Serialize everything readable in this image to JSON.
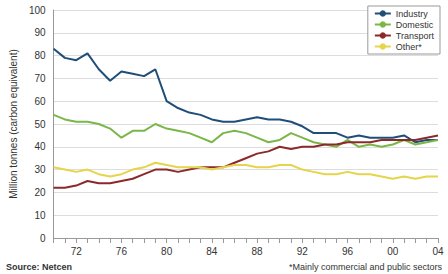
{
  "chart_data": {
    "type": "line",
    "y_label": "Million tonnes (carbon equivalent)",
    "categories": [
      null,
      null,
      "72",
      null,
      null,
      null,
      "76",
      null,
      null,
      null,
      "80",
      null,
      null,
      null,
      "84",
      null,
      null,
      null,
      "88",
      null,
      null,
      null,
      "92",
      null,
      null,
      null,
      "96",
      null,
      null,
      null,
      "00",
      null,
      null,
      null,
      "04"
    ],
    "series": [
      {
        "name": "Industry",
        "color": "#1f4e79",
        "values": [
          83,
          79,
          78,
          81,
          74,
          69,
          73,
          72,
          71,
          74,
          60,
          57,
          55,
          54,
          52,
          51,
          51,
          52,
          53,
          52,
          52,
          51,
          49,
          46,
          46,
          46,
          44,
          45,
          44,
          44,
          44,
          45,
          42,
          43,
          43
        ]
      },
      {
        "name": "Domestic",
        "color": "#7ab648",
        "values": [
          54,
          52,
          51,
          51,
          50,
          48,
          44,
          47,
          47,
          50,
          48,
          47,
          46,
          44,
          42,
          46,
          47,
          46,
          44,
          42,
          43,
          46,
          44,
          42,
          41,
          40,
          43,
          40,
          41,
          40,
          41,
          43,
          41,
          42,
          43
        ]
      },
      {
        "name": "Transport",
        "color": "#8b2a2a",
        "values": [
          22,
          22,
          23,
          25,
          24,
          24,
          25,
          26,
          28,
          30,
          30,
          29,
          30,
          31,
          31,
          31,
          33,
          35,
          37,
          38,
          40,
          39,
          40,
          40,
          41,
          41,
          42,
          42,
          42,
          43,
          43,
          43,
          43,
          44,
          45
        ]
      },
      {
        "name": "Other*",
        "color": "#e6d44a",
        "values": [
          31,
          30,
          29,
          30,
          28,
          27,
          28,
          30,
          31,
          33,
          32,
          31,
          31,
          31,
          30,
          31,
          32,
          32,
          31,
          31,
          32,
          32,
          30,
          29,
          28,
          28,
          29,
          28,
          28,
          27,
          26,
          27,
          26,
          27,
          27
        ]
      }
    ],
    "ylim": [
      0,
      100
    ],
    "yticks": [
      0,
      10,
      20,
      30,
      40,
      50,
      60,
      70,
      80,
      90,
      100
    ],
    "grid": true,
    "legend": "top-right",
    "annotations": [
      "Source: Netcen",
      "*Mainly commercial and public sectors"
    ]
  }
}
